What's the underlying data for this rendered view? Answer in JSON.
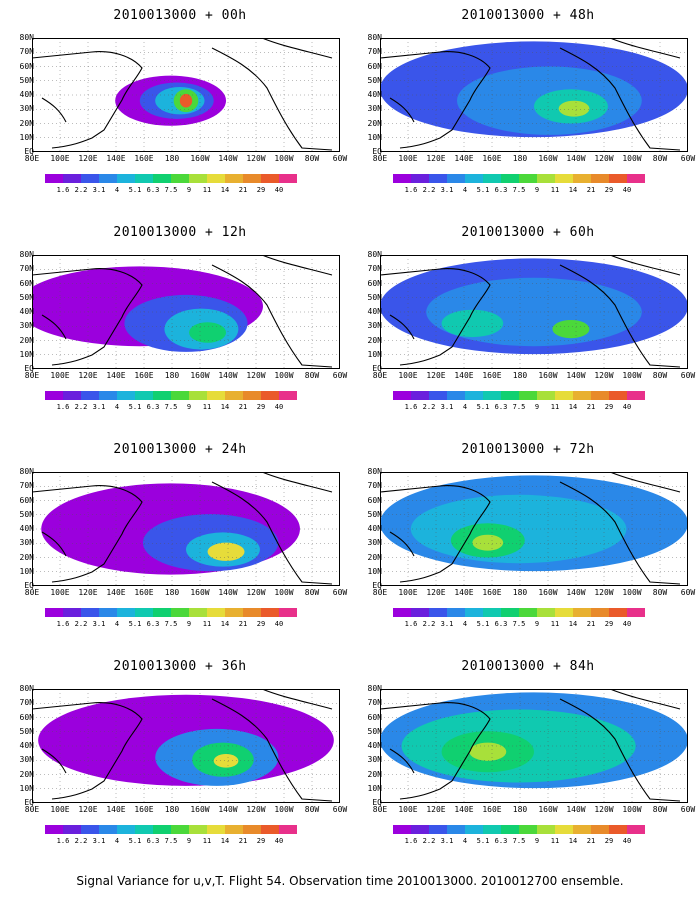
{
  "figure": {
    "footer": "Signal Variance for u,v,T. Flight 54. Observation time 2010013000. 2010012700 ensemble.",
    "lat_labels": [
      "80N",
      "70N",
      "60N",
      "50N",
      "40N",
      "30N",
      "20N",
      "10N",
      "EQ"
    ],
    "lon_labels": [
      "80E",
      "100E",
      "120E",
      "140E",
      "160E",
      "180",
      "160W",
      "140W",
      "120W",
      "100W",
      "80W",
      "60W"
    ],
    "colorbar": {
      "levels": [
        "1.6",
        "2.2",
        "3.1",
        "4",
        "5.1",
        "6.3",
        "7.5",
        "9",
        "11",
        "14",
        "21",
        "29",
        "40"
      ],
      "colors": [
        "#9b00dd",
        "#6a1fdd",
        "#3a55ea",
        "#2a88e8",
        "#1cb3dc",
        "#10c9b0",
        "#10d070",
        "#4bd83a",
        "#a8e03a",
        "#e6dc3a",
        "#e8b030",
        "#e88a2a",
        "#ea5a2a",
        "#e8308a"
      ]
    }
  },
  "chart_data": [
    {
      "type": "heatmap",
      "title": "2010013000 + 00h",
      "field": "Signal Variance for u,v,T",
      "lon_range": [
        "80E",
        "60W"
      ],
      "lat_range": [
        "EQ",
        "80N"
      ],
      "colorbar_levels": [
        1.6,
        2.2,
        3.1,
        4,
        5.1,
        6.3,
        7.5,
        9,
        11,
        14,
        21,
        29,
        40
      ],
      "maximum_location": "near 50N, 170W"
    },
    {
      "type": "heatmap",
      "title": "2010013000 + 12h",
      "field": "Signal Variance for u,v,T",
      "lon_range": [
        "80E",
        "60W"
      ],
      "lat_range": [
        "EQ",
        "80N"
      ],
      "colorbar_levels": [
        1.6,
        2.2,
        3.1,
        4,
        5.1,
        6.3,
        7.5,
        9,
        11,
        14,
        21,
        29,
        40
      ],
      "maximum_location": "near 43N, 165W"
    },
    {
      "type": "heatmap",
      "title": "2010013000 + 24h",
      "field": "Signal Variance for u,v,T",
      "lon_range": [
        "80E",
        "60W"
      ],
      "lat_range": [
        "EQ",
        "80N"
      ],
      "colorbar_levels": [
        1.6,
        2.2,
        3.1,
        4,
        5.1,
        6.3,
        7.5,
        9,
        11,
        14,
        21,
        29,
        40
      ],
      "maximum_location": "near 40N, 145W"
    },
    {
      "type": "heatmap",
      "title": "2010013000 + 36h",
      "field": "Signal Variance for u,v,T",
      "lon_range": [
        "80E",
        "60W"
      ],
      "lat_range": [
        "EQ",
        "80N"
      ],
      "colorbar_levels": [
        1.6,
        2.2,
        3.1,
        4,
        5.1,
        6.3,
        7.5,
        9,
        11,
        14,
        21,
        29,
        40
      ],
      "maximum_location": "near 45N, 140W"
    },
    {
      "type": "heatmap",
      "title": "2010013000 + 48h",
      "field": "Signal Variance for u,v,T",
      "lon_range": [
        "80E",
        "60W"
      ],
      "lat_range": [
        "EQ",
        "80N"
      ],
      "colorbar_levels": [
        1.6,
        2.2,
        3.1,
        4,
        5.1,
        6.3,
        7.5,
        9,
        11,
        14,
        21,
        29,
        40
      ],
      "maximum_location": "near 50N, 140W"
    },
    {
      "type": "heatmap",
      "title": "2010013000 + 60h",
      "field": "Signal Variance for u,v,T",
      "lon_range": [
        "80E",
        "60W"
      ],
      "lat_range": [
        "EQ",
        "80N"
      ],
      "colorbar_levels": [
        1.6,
        2.2,
        3.1,
        4,
        5.1,
        6.3,
        7.5,
        9,
        11,
        14,
        21,
        29,
        40
      ],
      "maximum_location": "near 45N, 140W"
    },
    {
      "type": "heatmap",
      "title": "2010013000 + 72h",
      "field": "Signal Variance for u,v,T",
      "lon_range": [
        "80E",
        "60W"
      ],
      "lat_range": [
        "EQ",
        "80N"
      ],
      "colorbar_levels": [
        1.6,
        2.2,
        3.1,
        4,
        5.1,
        6.3,
        7.5,
        9,
        11,
        14,
        21,
        29,
        40
      ],
      "maximum_location": "near 45N, 160E"
    },
    {
      "type": "heatmap",
      "title": "2010013000 + 84h",
      "field": "Signal Variance for u,v,T",
      "lon_range": [
        "80E",
        "60W"
      ],
      "lat_range": [
        "EQ",
        "80N"
      ],
      "colorbar_levels": [
        1.6,
        2.2,
        3.1,
        4,
        5.1,
        6.3,
        7.5,
        9,
        11,
        14,
        21,
        29,
        40
      ],
      "maximum_location": "near 50N, 165E"
    }
  ]
}
